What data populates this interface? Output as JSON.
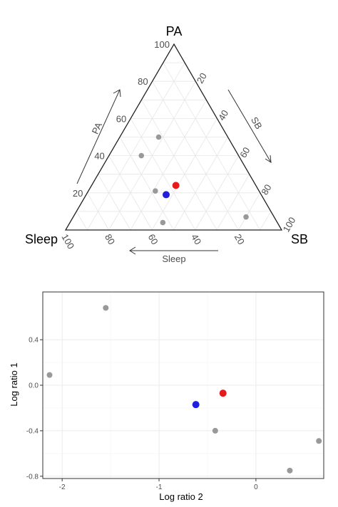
{
  "chart_data": [
    {
      "type": "ternary",
      "title": "",
      "axes": {
        "top": {
          "name": "PA",
          "axis_label": "PA"
        },
        "right": {
          "name": "SB",
          "axis_label": "SB"
        },
        "left": {
          "name": "Sleep",
          "axis_label": "Sleep"
        }
      },
      "tick_labels": [
        "20",
        "40",
        "60",
        "80",
        "100"
      ],
      "grid": true,
      "series": [
        {
          "color": "#999999",
          "points": [
            {
              "PA": 50,
              "SB": 18,
              "Sleep": 32
            },
            {
              "PA": 40,
              "SB": 15,
              "Sleep": 45
            },
            {
              "PA": 21,
              "SB": 31,
              "Sleep": 48
            },
            {
              "PA": 4,
              "SB": 43,
              "Sleep": 53
            },
            {
              "PA": 7,
              "SB": 80,
              "Sleep": 13
            }
          ]
        },
        {
          "color": "#e41a1c",
          "points": [
            {
              "PA": 24,
              "SB": 39,
              "Sleep": 37
            }
          ]
        },
        {
          "color": "#1f1fdd",
          "points": [
            {
              "PA": 19,
              "SB": 37,
              "Sleep": 44
            }
          ]
        }
      ]
    },
    {
      "type": "scatter",
      "title": "",
      "xlabel": "Log ratio 2",
      "ylabel": "Log ratio 1",
      "xlim": [
        -2.2,
        0.7
      ],
      "ylim": [
        -0.82,
        0.82
      ],
      "xticks": [
        -2,
        -1,
        0
      ],
      "xtick_labels": [
        "-2",
        "-1",
        "0"
      ],
      "yticks": [
        0.4,
        0.0,
        -0.4,
        -0.8
      ],
      "ytick_labels": [
        "0.4",
        "0.0",
        "-0.4",
        "-0.8"
      ],
      "grid": true,
      "series": [
        {
          "color": "#999999",
          "points": [
            {
              "x": -1.55,
              "y": 0.68
            },
            {
              "x": -2.13,
              "y": 0.09
            },
            {
              "x": -0.42,
              "y": -0.4
            },
            {
              "x": 0.65,
              "y": -0.49
            },
            {
              "x": 0.35,
              "y": -0.75
            }
          ]
        },
        {
          "color": "#e41a1c",
          "points": [
            {
              "x": -0.34,
              "y": -0.07
            }
          ]
        },
        {
          "color": "#1f1fdd",
          "points": [
            {
              "x": -0.62,
              "y": -0.17
            }
          ]
        }
      ]
    }
  ]
}
